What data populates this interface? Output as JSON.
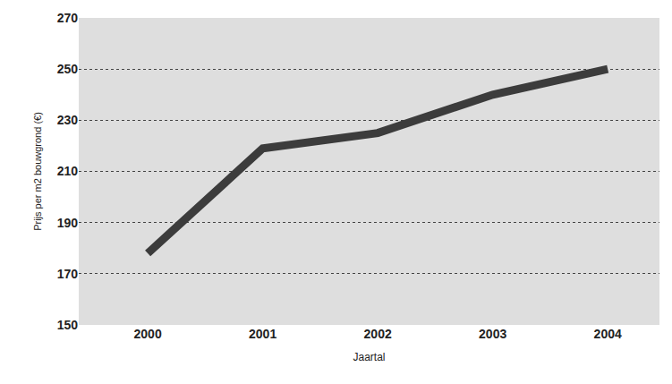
{
  "chart_data": {
    "type": "line",
    "x_label": "Jaartal",
    "y_label": "Prijs per m2 bouwgrond (€)",
    "categories": [
      "2000",
      "2001",
      "2002",
      "2003",
      "2004"
    ],
    "values": [
      178,
      219,
      225,
      240,
      250
    ],
    "color": "#3c3c3c",
    "line_style": "solid",
    "ylim": [
      150,
      270
    ],
    "yticks": [
      150,
      170,
      190,
      210,
      230,
      250,
      270
    ],
    "grid": true
  }
}
